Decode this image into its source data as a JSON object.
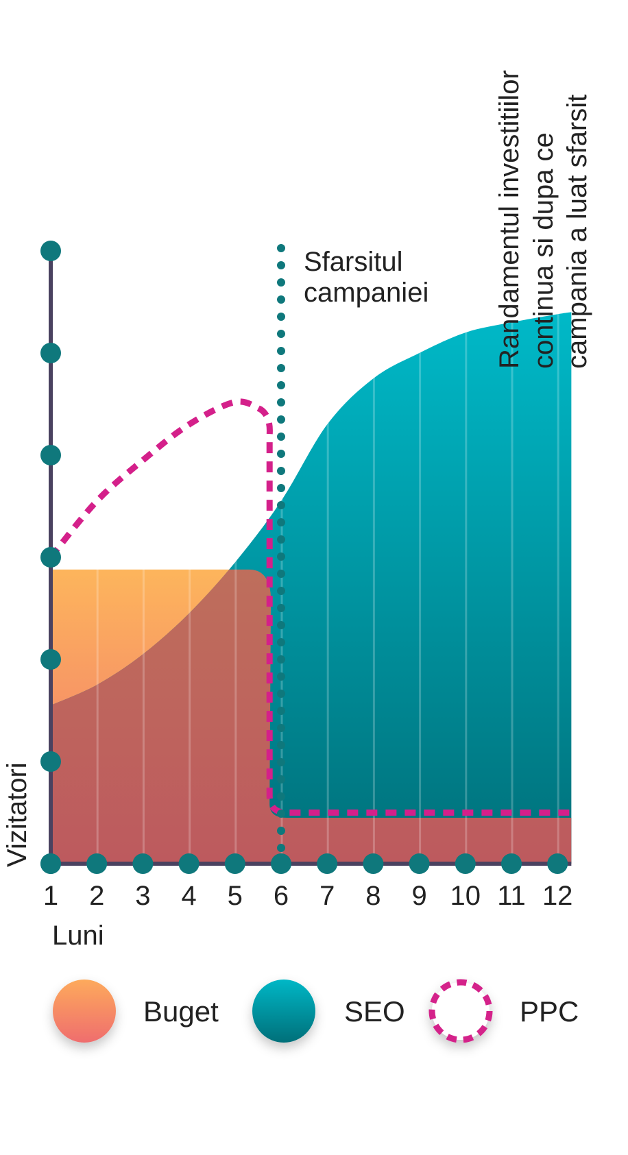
{
  "chart_data": {
    "type": "area",
    "ylabel": "Vizitatori",
    "xlabel": "Luni",
    "categories": [
      "1",
      "2",
      "3",
      "4",
      "5",
      "6",
      "7",
      "8",
      "9",
      "10",
      "11",
      "12"
    ],
    "x": [
      1,
      2,
      3,
      4,
      5,
      6,
      7,
      8,
      9,
      10,
      11,
      12
    ],
    "xlim": [
      1,
      12.3
    ],
    "ylim": [
      0,
      6
    ],
    "y_ticks": [
      0,
      1,
      2,
      3,
      4,
      5,
      6
    ],
    "grid": "vertical",
    "legend_placement": "bottom",
    "annotations": {
      "campaign_end": {
        "x": 6,
        "label": [
          "Sfarsitul",
          "campaniei"
        ]
      },
      "roi_note": [
        "Randamentul investitiilor",
        "continua si dupa ce",
        "campania a luat sfarsit"
      ]
    },
    "series": [
      {
        "name": "Buget",
        "style": "area",
        "color_top": "#fdb55c",
        "color_bottom": "#f07070",
        "x": [
          1,
          5.6,
          5.75,
          6,
          12.3
        ],
        "y": [
          2.88,
          2.88,
          0.45,
          0.45,
          0.45
        ]
      },
      {
        "name": "SEO",
        "style": "area",
        "color_top": "#00b9c8",
        "color_bottom": "#00707a",
        "x": [
          1,
          2,
          3,
          4,
          5,
          6,
          7,
          8,
          9,
          10,
          11,
          12,
          12.3
        ],
        "y": [
          1.55,
          1.75,
          2.05,
          2.45,
          2.95,
          3.55,
          4.3,
          4.75,
          5.0,
          5.2,
          5.3,
          5.38,
          5.4
        ]
      },
      {
        "name": "PPC",
        "style": "dashed-line",
        "color": "#d4208a",
        "x": [
          1,
          2,
          3,
          4,
          5,
          5.55,
          5.7,
          5.75,
          6,
          12.3
        ],
        "y": [
          3.0,
          3.55,
          3.95,
          4.3,
          4.52,
          4.45,
          4.2,
          0.6,
          0.5,
          0.5
        ]
      }
    ]
  },
  "colors": {
    "axis": "#4a4260",
    "dots": "#0f787c",
    "pink": "#d4208a"
  }
}
